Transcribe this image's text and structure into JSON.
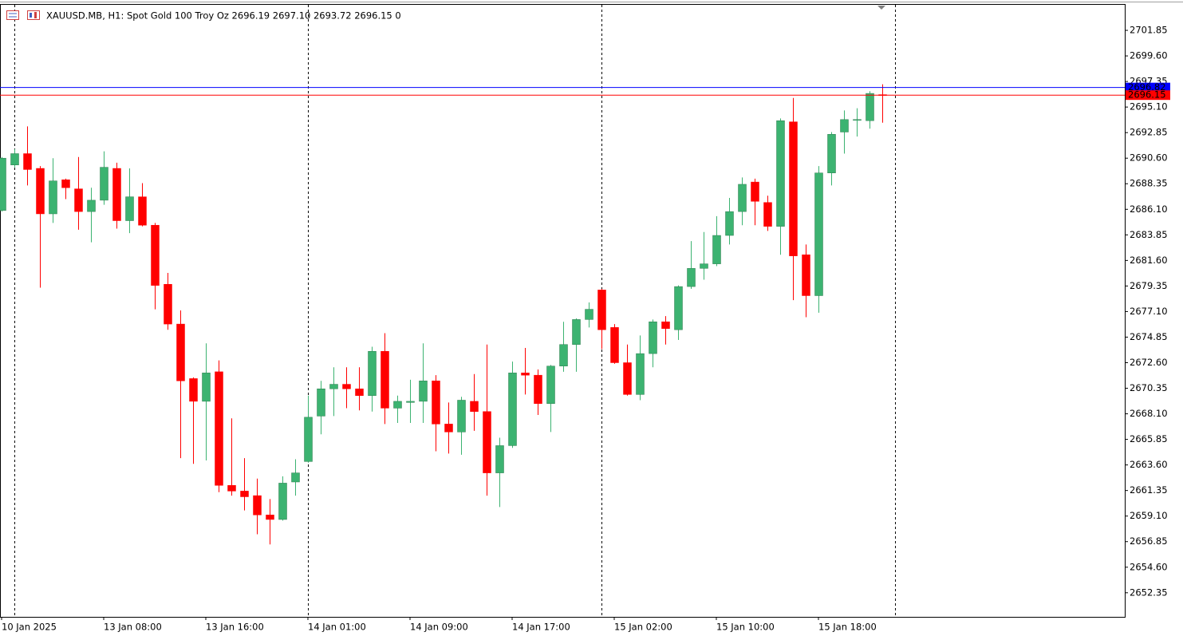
{
  "chart_data": {
    "type": "candlestick",
    "title": "XAUUSD.MB, H1:  Spot Gold 100 Troy Oz  2696.19 2697.10 2693.72 2696.15  0",
    "categories": [
      "10 Jan 2025",
      null,
      null,
      null,
      null,
      null,
      null,
      null,
      "13 Jan 08:00",
      null,
      null,
      null,
      null,
      null,
      null,
      null,
      "13 Jan 16:00",
      null,
      null,
      null,
      null,
      null,
      null,
      null,
      "14 Jan 01:00",
      null,
      null,
      null,
      null,
      null,
      null,
      null,
      "14 Jan 09:00",
      null,
      null,
      null,
      null,
      null,
      null,
      null,
      "14 Jan 17:00",
      null,
      null,
      null,
      null,
      null,
      null,
      null,
      "15 Jan 02:00",
      null,
      null,
      null,
      null,
      null,
      null,
      null,
      "15 Jan 10:00",
      null,
      null,
      null,
      null,
      null,
      null,
      null,
      "15 Jan 18:00",
      null,
      null,
      null,
      null,
      null
    ],
    "open": [
      2686.0,
      2690.0,
      2691.0,
      2689.7,
      2685.7,
      2688.7,
      2687.9,
      2685.9,
      2686.9,
      2689.7,
      2685.1,
      2687.2,
      2684.7,
      2679.5,
      2676.0,
      2671.2,
      2669.2,
      2671.8,
      2661.8,
      2661.3,
      2660.9,
      2659.2,
      2658.8,
      2662.1,
      2663.9,
      2667.9,
      2670.3,
      2670.7,
      2670.3,
      2669.7,
      2673.6,
      2668.6,
      2669.1,
      2669.2,
      2671.0,
      2667.2,
      2666.5,
      2669.2,
      2668.3,
      2662.9,
      2665.3,
      2671.7,
      2671.5,
      2669.0,
      2672.3,
      2674.2,
      2676.4,
      2679.0,
      2675.7,
      2672.6,
      2669.8,
      2673.4,
      2676.2,
      2675.5,
      2679.3,
      2680.9,
      2681.3,
      2683.8,
      2685.9,
      2688.5,
      2686.7,
      2684.6,
      2693.8,
      2682.1,
      2678.5,
      2689.3,
      2692.9,
      2694.0,
      2693.9,
      2696.19
    ],
    "high": [
      2690.7,
      2691.4,
      2693.4,
      2689.9,
      2690.6,
      2688.8,
      2690.7,
      2688.0,
      2691.2,
      2690.2,
      2689.7,
      2688.4,
      2684.9,
      2680.5,
      2677.2,
      2671.3,
      2674.3,
      2672.8,
      2667.7,
      2664.2,
      2662.4,
      2660.6,
      2662.6,
      2664.1,
      2669.7,
      2671.0,
      2672.2,
      2672.2,
      2672.2,
      2674.0,
      2675.2,
      2669.7,
      2671.1,
      2674.3,
      2671.5,
      2669.1,
      2669.6,
      2671.6,
      2674.2,
      2666.0,
      2672.7,
      2673.9,
      2672.0,
      2672.4,
      2676.2,
      2676.5,
      2677.9,
      2679.1,
      2676.0,
      2674.2,
      2675.0,
      2676.4,
      2676.7,
      2679.4,
      2683.3,
      2684.1,
      2685.5,
      2687.1,
      2688.9,
      2688.8,
      2687.3,
      2694.1,
      2695.9,
      2683.0,
      2689.9,
      2692.9,
      2694.8,
      2695.0,
      2696.5,
      2697.1
    ],
    "low": [
      2685.9,
      2689.8,
      2688.2,
      2679.2,
      2684.9,
      2687.0,
      2684.3,
      2683.2,
      2686.5,
      2684.4,
      2684.0,
      2684.6,
      2677.3,
      2675.5,
      2664.2,
      2663.7,
      2664.0,
      2661.2,
      2660.9,
      2659.6,
      2657.5,
      2656.6,
      2658.7,
      2660.9,
      2663.8,
      2666.3,
      2667.9,
      2668.6,
      2668.4,
      2668.3,
      2667.2,
      2667.3,
      2667.3,
      2667.3,
      2664.8,
      2664.6,
      2664.5,
      2666.6,
      2660.9,
      2659.9,
      2665.1,
      2669.8,
      2668.0,
      2666.5,
      2671.8,
      2671.8,
      2675.7,
      2673.8,
      2672.5,
      2669.7,
      2669.3,
      2672.2,
      2674.2,
      2674.6,
      2679.1,
      2679.9,
      2681.1,
      2683.0,
      2684.7,
      2684.7,
      2684.2,
      2682.1,
      2678.1,
      2676.6,
      2677.0,
      2688.2,
      2691.0,
      2692.5,
      2693.2,
      2693.72
    ],
    "close": [
      2690.6,
      2691.0,
      2689.6,
      2685.7,
      2688.6,
      2688.0,
      2685.9,
      2686.9,
      2689.8,
      2685.1,
      2687.2,
      2684.7,
      2679.4,
      2676.0,
      2671.0,
      2669.2,
      2671.7,
      2661.8,
      2661.3,
      2660.8,
      2659.2,
      2658.8,
      2662.0,
      2662.9,
      2667.8,
      2670.3,
      2670.7,
      2670.3,
      2669.7,
      2673.6,
      2668.6,
      2669.2,
      2669.2,
      2671.0,
      2667.2,
      2666.5,
      2669.3,
      2668.3,
      2662.9,
      2665.3,
      2671.7,
      2671.5,
      2669.0,
      2672.3,
      2674.2,
      2676.4,
      2677.3,
      2675.5,
      2672.6,
      2669.8,
      2673.4,
      2676.2,
      2675.6,
      2679.3,
      2680.9,
      2681.3,
      2683.8,
      2685.9,
      2688.3,
      2686.8,
      2684.6,
      2693.9,
      2682.0,
      2678.5,
      2689.3,
      2692.7,
      2694.0,
      2694.0,
      2696.3,
      2696.15
    ],
    "up_color": "#3cb371",
    "down_color": "#ff0000",
    "ylim": [
      2650.23,
      2704.17
    ],
    "yticks": [
      {
        "value": 2701.85,
        "label": "2701.85"
      },
      {
        "value": 2699.6,
        "label": "2699.60"
      },
      {
        "value": 2697.35,
        "label": "2697.35"
      },
      {
        "value": 2695.1,
        "label": "2695.10"
      },
      {
        "value": 2692.85,
        "label": "2692.85"
      },
      {
        "value": 2690.6,
        "label": "2690.60"
      },
      {
        "value": 2688.35,
        "label": "2688.35"
      },
      {
        "value": 2686.1,
        "label": "2686.10"
      },
      {
        "value": 2683.85,
        "label": "2683.85"
      },
      {
        "value": 2681.6,
        "label": "2681.60"
      },
      {
        "value": 2679.35,
        "label": "2679.35"
      },
      {
        "value": 2677.1,
        "label": "2677.10"
      },
      {
        "value": 2674.85,
        "label": "2674.85"
      },
      {
        "value": 2672.6,
        "label": "2672.60"
      },
      {
        "value": 2670.35,
        "label": "2670.35"
      },
      {
        "value": 2668.1,
        "label": "2668.10"
      },
      {
        "value": 2665.85,
        "label": "2665.85"
      },
      {
        "value": 2663.6,
        "label": "2663.60"
      },
      {
        "value": 2661.35,
        "label": "2661.35"
      },
      {
        "value": 2659.1,
        "label": "2659.10"
      },
      {
        "value": 2656.85,
        "label": "2656.85"
      },
      {
        "value": 2654.6,
        "label": "2654.60"
      },
      {
        "value": 2652.35,
        "label": "2652.35"
      }
    ],
    "price_lines": [
      {
        "value": 2696.82,
        "color": "#0000ff"
      },
      {
        "value": 2696.15,
        "color": "#ff0000"
      }
    ]
  }
}
